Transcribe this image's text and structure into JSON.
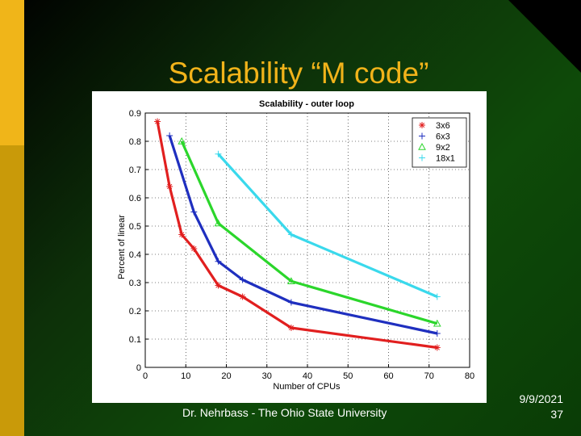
{
  "slide": {
    "title": "Scalability “M code”",
    "footer": "Dr. Nehrbass - The Ohio State University",
    "date": "9/9/2021",
    "page_number": "37"
  },
  "colors": {
    "title": "#f1b31a",
    "accent_stripe": "#c99a09",
    "background": "#0b3a06"
  },
  "chart_data": {
    "type": "line",
    "title": "Scalability - outer loop",
    "xlabel": "Number of CPUs",
    "ylabel": "Percent of linear",
    "xlim": [
      0,
      80
    ],
    "ylim": [
      0,
      0.9
    ],
    "xticks": [
      0,
      10,
      20,
      30,
      40,
      50,
      60,
      70,
      80
    ],
    "yticks": [
      0,
      0.1,
      0.2,
      0.3,
      0.4,
      0.5,
      0.6,
      0.7,
      0.8,
      0.9
    ],
    "grid": true,
    "legend_position": "top-right",
    "series": [
      {
        "name": "3x6",
        "color": "#e11f1f",
        "marker": "asterisk",
        "points": [
          [
            3,
            0.87
          ],
          [
            6,
            0.64
          ],
          [
            9,
            0.47
          ],
          [
            12,
            0.42
          ],
          [
            18,
            0.29
          ],
          [
            24,
            0.25
          ],
          [
            36,
            0.14
          ],
          [
            72,
            0.07
          ]
        ]
      },
      {
        "name": "6x3",
        "color": "#1f2fbf",
        "marker": "plus",
        "points": [
          [
            6,
            0.82
          ],
          [
            12,
            0.55
          ],
          [
            18,
            0.375
          ],
          [
            24,
            0.31
          ],
          [
            36,
            0.23
          ],
          [
            72,
            0.12
          ]
        ]
      },
      {
        "name": "9x2",
        "color": "#2bd62b",
        "marker": "triangle",
        "points": [
          [
            9,
            0.8
          ],
          [
            18,
            0.51
          ],
          [
            36,
            0.305
          ],
          [
            72,
            0.155
          ]
        ]
      },
      {
        "name": "18x1",
        "color": "#3ad9ec",
        "marker": "plus",
        "points": [
          [
            18,
            0.755
          ],
          [
            36,
            0.47
          ],
          [
            72,
            0.25
          ]
        ]
      }
    ]
  }
}
